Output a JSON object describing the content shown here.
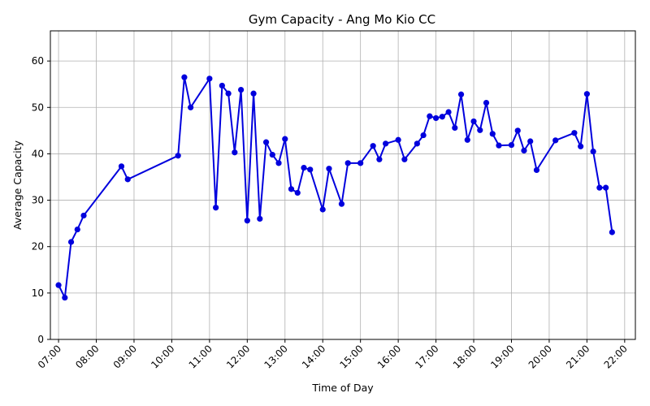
{
  "chart_data": {
    "type": "line",
    "title": "Gym Capacity - Ang Mo Kio CC",
    "xlabel": "Time of Day",
    "ylabel": "Average Capacity",
    "xlim": [
      "06:47",
      "22:17"
    ],
    "ylim": [
      0,
      66.5
    ],
    "x_ticks": [
      "07:00",
      "08:00",
      "09:00",
      "10:00",
      "11:00",
      "12:00",
      "13:00",
      "14:00",
      "15:00",
      "16:00",
      "17:00",
      "18:00",
      "19:00",
      "20:00",
      "21:00",
      "22:00"
    ],
    "y_ticks": [
      0,
      10,
      20,
      30,
      40,
      50,
      60
    ],
    "grid": true,
    "color": "#0000dd",
    "series": [
      {
        "x": [
          "07:00",
          "07:10",
          "07:20",
          "07:30",
          "07:40",
          "08:40",
          "08:50",
          "10:10",
          "10:20",
          "10:30",
          "11:00",
          "11:10",
          "11:20",
          "11:30",
          "11:40",
          "11:50",
          "12:00",
          "12:10",
          "12:20",
          "12:30",
          "12:40",
          "12:50",
          "13:00",
          "13:10",
          "13:20",
          "13:30",
          "13:40",
          "14:00",
          "14:10",
          "14:30",
          "14:40",
          "15:00",
          "15:20",
          "15:30",
          "15:40",
          "16:00",
          "16:10",
          "16:30",
          "16:40",
          "16:50",
          "17:00",
          "17:10",
          "17:20",
          "17:30",
          "17:40",
          "17:50",
          "18:00",
          "18:10",
          "18:20",
          "18:30",
          "18:40",
          "19:00",
          "19:10",
          "19:20",
          "19:30",
          "19:40",
          "20:10",
          "20:40",
          "20:50",
          "21:00",
          "21:10",
          "21:20",
          "21:30",
          "21:40"
        ],
        "values": [
          11.7,
          9.0,
          21.0,
          23.7,
          26.7,
          37.3,
          34.5,
          39.6,
          56.5,
          50.0,
          56.2,
          28.4,
          54.7,
          53.0,
          40.3,
          53.8,
          25.6,
          53.0,
          26.0,
          42.5,
          39.8,
          38.0,
          43.2,
          32.4,
          31.6,
          37.0,
          36.6,
          28.0,
          36.8,
          29.2,
          38.0,
          38.0,
          41.7,
          38.8,
          42.2,
          43.0,
          38.8,
          42.2,
          44.0,
          48.1,
          47.7,
          48.0,
          49.0,
          45.6,
          52.8,
          43.0,
          47.0,
          45.1,
          51.0,
          44.3,
          41.8,
          41.9,
          45.0,
          40.7,
          42.7,
          36.5,
          42.9,
          44.5,
          41.6,
          52.9,
          40.5,
          32.7,
          32.7,
          23.1
        ]
      }
    ]
  }
}
